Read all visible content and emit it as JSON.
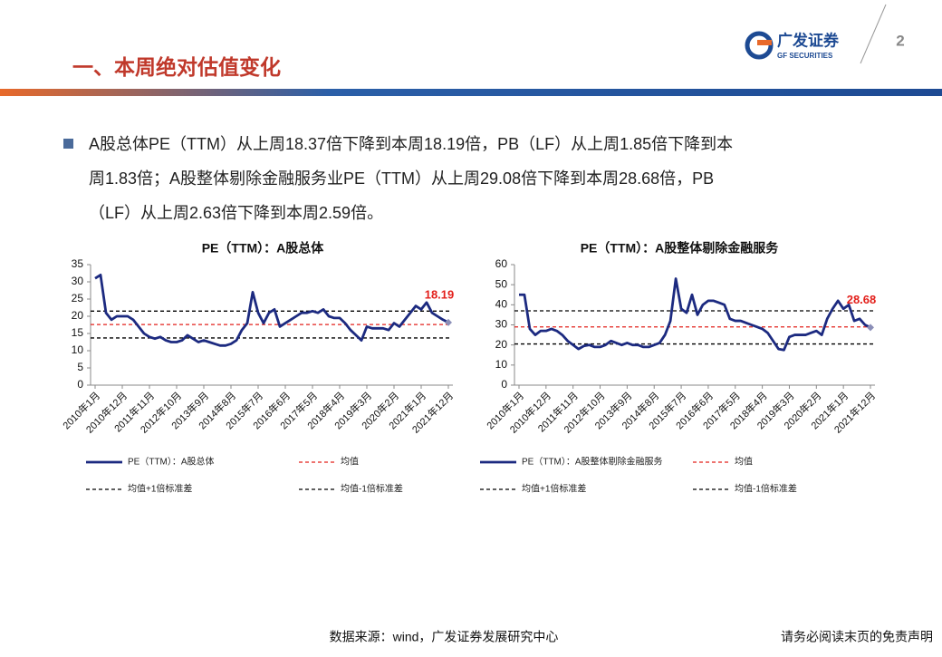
{
  "header": {
    "title": "一、本周绝对估值变化",
    "logo_cn": "广发证券",
    "logo_en": "GF SECURITIES",
    "page_number": "2"
  },
  "bullet": {
    "lines": [
      "A股总体PE（TTM）从上周18.37倍下降到本周18.19倍，PB（LF）从上周1.85倍下降到本",
      "周1.83倍；A股整体剔除金融服务业PE（TTM）从上周29.08倍下降到本周28.68倍，PB",
      "（LF）从上周2.63倍下降到本周2.59倍。"
    ]
  },
  "footer": {
    "source": "数据来源：wind，广发证券发展研究中心",
    "disclaimer": "请务必阅读末页的免责声明"
  },
  "chart_data": [
    {
      "type": "line",
      "title": "PE（TTM）：A股总体",
      "categories": [
        "2010年1月",
        null,
        null,
        null,
        null,
        "2010年12月",
        null,
        null,
        null,
        null,
        "2011年11月",
        null,
        null,
        null,
        null,
        "2012年10月",
        null,
        null,
        null,
        null,
        "2013年9月",
        null,
        null,
        null,
        null,
        "2014年8月",
        null,
        null,
        null,
        null,
        "2015年7月",
        null,
        null,
        null,
        null,
        "2016年6月",
        null,
        null,
        null,
        null,
        "2017年5月",
        null,
        null,
        null,
        null,
        "2018年4月",
        null,
        null,
        null,
        null,
        "2019年3月",
        null,
        null,
        null,
        null,
        "2020年2月",
        null,
        null,
        null,
        null,
        "2021年1月",
        null,
        null,
        null,
        null,
        "2021年12月"
      ],
      "series": [
        {
          "name": "PE（TTM）：A股总体",
          "color": "#1c2a80",
          "values": [
            31,
            32,
            21,
            19,
            20,
            20,
            20,
            19,
            17,
            15,
            14,
            13.5,
            14,
            13,
            12.5,
            12.5,
            13,
            14.5,
            13.5,
            12.5,
            13,
            12.5,
            12,
            11.5,
            11.5,
            12,
            13,
            16,
            18,
            27,
            21,
            18,
            21,
            22,
            17,
            18,
            19,
            20,
            21,
            21,
            21.5,
            21,
            22,
            20,
            19.5,
            19.5,
            18,
            16,
            14.5,
            13,
            17,
            16.5,
            16.5,
            16.5,
            16,
            18,
            17,
            19,
            21,
            23,
            22,
            24,
            21,
            20,
            19,
            18.19
          ]
        }
      ],
      "reference_lines": [
        {
          "name": "均值",
          "value": 17.6,
          "color": "#e3201b"
        },
        {
          "name": "均值+1倍标准差",
          "value": 21.5,
          "color": "#000000"
        },
        {
          "name": "均值-1倍标准差",
          "value": 13.7,
          "color": "#000000"
        }
      ],
      "ylim": [
        0,
        35
      ],
      "yticks": [
        0,
        5,
        10,
        15,
        20,
        25,
        30,
        35
      ]
    },
    {
      "type": "line",
      "title": "PE（TTM）：A股整体剔除金融服务",
      "categories": [
        "2010年1月",
        null,
        null,
        null,
        null,
        "2010年12月",
        null,
        null,
        null,
        null,
        "2011年11月",
        null,
        null,
        null,
        null,
        "2012年10月",
        null,
        null,
        null,
        null,
        "2013年9月",
        null,
        null,
        null,
        null,
        "2014年8月",
        null,
        null,
        null,
        null,
        "2015年7月",
        null,
        null,
        null,
        null,
        "2016年6月",
        null,
        null,
        null,
        null,
        "2017年5月",
        null,
        null,
        null,
        null,
        "2018年4月",
        null,
        null,
        null,
        null,
        "2019年3月",
        null,
        null,
        null,
        null,
        "2020年2月",
        null,
        null,
        null,
        null,
        "2021年1月",
        null,
        null,
        null,
        null,
        "2021年12月"
      ],
      "series": [
        {
          "name": "PE（TTM）：A股整体剔除金融服务",
          "color": "#1c2a80",
          "values": [
            45,
            45,
            28,
            25,
            27,
            27,
            28,
            27,
            25,
            22,
            20,
            18,
            19.5,
            20,
            19,
            19,
            20,
            22,
            21,
            20,
            21,
            20,
            20,
            19,
            19,
            20,
            21,
            25,
            32,
            53,
            38,
            36,
            45,
            35,
            40,
            42,
            42,
            41,
            40,
            33,
            32,
            32,
            31,
            30,
            29,
            28,
            26,
            22,
            18,
            17.5,
            24,
            25,
            25,
            25,
            26,
            27,
            25,
            33,
            38,
            42,
            38,
            40,
            32,
            33,
            30,
            28.68
          ]
        }
      ],
      "reference_lines": [
        {
          "name": "均值",
          "value": 29,
          "color": "#e3201b"
        },
        {
          "name": "均值+1倍标准差",
          "value": 37,
          "color": "#000000"
        },
        {
          "name": "均值-1倍标准差",
          "value": 20.5,
          "color": "#000000"
        }
      ],
      "ylim": [
        0,
        60
      ],
      "yticks": [
        0,
        10,
        20,
        30,
        40,
        50,
        60
      ]
    }
  ]
}
